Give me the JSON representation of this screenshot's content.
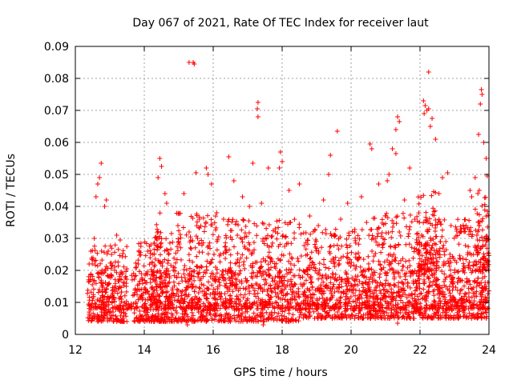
{
  "chart_data": {
    "type": "scatter",
    "title": "Day 067 of 2021, Rate Of TEC Index for receiver laut",
    "xlabel": "GPS time / hours",
    "ylabel": "ROTI / TECUs",
    "xlim": [
      12,
      24
    ],
    "ylim": [
      0,
      0.09
    ],
    "x_ticks": [
      12,
      14,
      16,
      18,
      20,
      22,
      24
    ],
    "y_ticks": [
      0,
      0.01,
      0.02,
      0.03,
      0.04,
      0.05,
      0.06,
      0.07,
      0.08,
      0.09
    ],
    "x_tick_labels": [
      "12",
      "14",
      "16",
      "18",
      "20",
      "22",
      "24"
    ],
    "y_tick_labels": [
      "0",
      "0.01",
      "0.02",
      "0.03",
      "0.04",
      "0.05",
      "0.06",
      "0.07",
      "0.08",
      "0.09"
    ],
    "grid": true,
    "marker": "+",
    "color": "#ff0000",
    "series": [
      {
        "name": "ROTI",
        "points": [
          [
            15.3,
            0.085
          ],
          [
            15.45,
            0.0845
          ],
          [
            15.42,
            0.085
          ],
          [
            22.25,
            0.082
          ],
          [
            23.78,
            0.0765
          ],
          [
            23.8,
            0.075
          ],
          [
            23.75,
            0.072
          ],
          [
            17.3,
            0.0725
          ],
          [
            17.28,
            0.0705
          ],
          [
            17.3,
            0.068
          ],
          [
            22.1,
            0.073
          ],
          [
            22.15,
            0.0715
          ],
          [
            22.2,
            0.07
          ],
          [
            22.12,
            0.069
          ],
          [
            22.25,
            0.0705
          ],
          [
            22.35,
            0.0675
          ],
          [
            22.45,
            0.061
          ],
          [
            22.3,
            0.065
          ],
          [
            21.35,
            0.068
          ],
          [
            21.4,
            0.0665
          ],
          [
            21.3,
            0.064
          ],
          [
            19.6,
            0.0635
          ],
          [
            23.7,
            0.0625
          ],
          [
            23.85,
            0.06
          ],
          [
            23.92,
            0.055
          ],
          [
            20.55,
            0.0595
          ],
          [
            20.6,
            0.058
          ],
          [
            21.2,
            0.058
          ],
          [
            21.3,
            0.0565
          ],
          [
            17.95,
            0.057
          ],
          [
            18.0,
            0.054
          ],
          [
            17.92,
            0.052
          ],
          [
            16.45,
            0.0555
          ],
          [
            15.8,
            0.052
          ],
          [
            15.85,
            0.05
          ],
          [
            14.45,
            0.055
          ],
          [
            14.5,
            0.0525
          ],
          [
            14.4,
            0.049
          ],
          [
            19.4,
            0.056
          ],
          [
            19.35,
            0.05
          ],
          [
            12.75,
            0.0535
          ],
          [
            12.7,
            0.049
          ],
          [
            12.65,
            0.047
          ],
          [
            17.15,
            0.0535
          ],
          [
            17.6,
            0.052
          ],
          [
            21.7,
            0.052
          ],
          [
            21.1,
            0.05
          ],
          [
            21.05,
            0.048
          ],
          [
            22.8,
            0.0505
          ],
          [
            22.65,
            0.049
          ],
          [
            23.6,
            0.049
          ],
          [
            23.95,
            0.0495
          ],
          [
            15.5,
            0.0505
          ],
          [
            15.95,
            0.047
          ],
          [
            16.6,
            0.048
          ],
          [
            18.5,
            0.047
          ],
          [
            18.2,
            0.045
          ],
          [
            20.3,
            0.043
          ],
          [
            20.8,
            0.047
          ],
          [
            13.2,
            0.031
          ],
          [
            13.3,
            0.0295
          ],
          [
            12.9,
            0.042
          ],
          [
            12.85,
            0.04
          ],
          [
            12.6,
            0.043
          ],
          [
            14.6,
            0.044
          ],
          [
            14.65,
            0.041
          ],
          [
            15.15,
            0.044
          ],
          [
            16.85,
            0.043
          ],
          [
            17.05,
            0.04
          ],
          [
            17.4,
            0.041
          ],
          [
            19.2,
            0.042
          ],
          [
            19.9,
            0.041
          ],
          [
            21.55,
            0.042
          ],
          [
            22.55,
            0.044
          ],
          [
            23.45,
            0.045
          ],
          [
            23.5,
            0.043
          ],
          [
            13.9,
            0.0275
          ],
          [
            14.1,
            0.026
          ],
          [
            14.25,
            0.025
          ],
          [
            15.6,
            0.036
          ],
          [
            16.1,
            0.038
          ],
          [
            16.3,
            0.036
          ],
          [
            18.8,
            0.037
          ],
          [
            19.05,
            0.034
          ],
          [
            19.7,
            0.036
          ],
          [
            20.1,
            0.032
          ],
          [
            20.45,
            0.035
          ],
          [
            21.0,
            0.037
          ],
          [
            21.85,
            0.036
          ],
          [
            22.9,
            0.034
          ],
          [
            23.3,
            0.033
          ],
          [
            12.55,
            0.03
          ],
          [
            12.45,
            0.026
          ],
          [
            12.4,
            0.022
          ],
          [
            13.05,
            0.025
          ],
          [
            14.35,
            0.03
          ],
          [
            15.0,
            0.029
          ],
          [
            15.3,
            0.032
          ],
          [
            16.7,
            0.031
          ],
          [
            17.8,
            0.033
          ],
          [
            18.35,
            0.03
          ],
          [
            19.5,
            0.031
          ],
          [
            20.7,
            0.03
          ],
          [
            21.4,
            0.032
          ],
          [
            22.05,
            0.031
          ],
          [
            22.75,
            0.029
          ],
          [
            23.65,
            0.031
          ],
          [
            23.9,
            0.028
          ],
          [
            15.25,
            0.003
          ],
          [
            17.45,
            0.003
          ],
          [
            12.65,
            0.004
          ],
          [
            21.35,
            0.0035
          ]
        ]
      }
    ],
    "bands": [
      {
        "x0": 12.35,
        "x1": 13.5,
        "lo": 0.004,
        "hi": 0.028,
        "n": 230
      },
      {
        "x0": 13.7,
        "x1": 14.7,
        "lo": 0.004,
        "hi": 0.03,
        "n": 200
      },
      {
        "x0": 14.3,
        "x1": 16.2,
        "lo": 0.004,
        "hi": 0.038,
        "n": 420
      },
      {
        "x0": 16.2,
        "x1": 18.5,
        "lo": 0.004,
        "hi": 0.036,
        "n": 460
      },
      {
        "x0": 18.5,
        "x1": 20.5,
        "lo": 0.005,
        "hi": 0.033,
        "n": 380
      },
      {
        "x0": 20.5,
        "x1": 22.5,
        "lo": 0.005,
        "hi": 0.038,
        "n": 460
      },
      {
        "x0": 22.5,
        "x1": 24.0,
        "lo": 0.005,
        "hi": 0.036,
        "n": 330
      },
      {
        "x0": 12.35,
        "x1": 24.0,
        "lo": 0.008,
        "hi": 0.02,
        "n": 900
      },
      {
        "x0": 21.9,
        "x1": 22.5,
        "lo": 0.02,
        "hi": 0.045,
        "n": 90
      },
      {
        "x0": 23.6,
        "x1": 24.0,
        "lo": 0.02,
        "hi": 0.045,
        "n": 70
      }
    ]
  }
}
